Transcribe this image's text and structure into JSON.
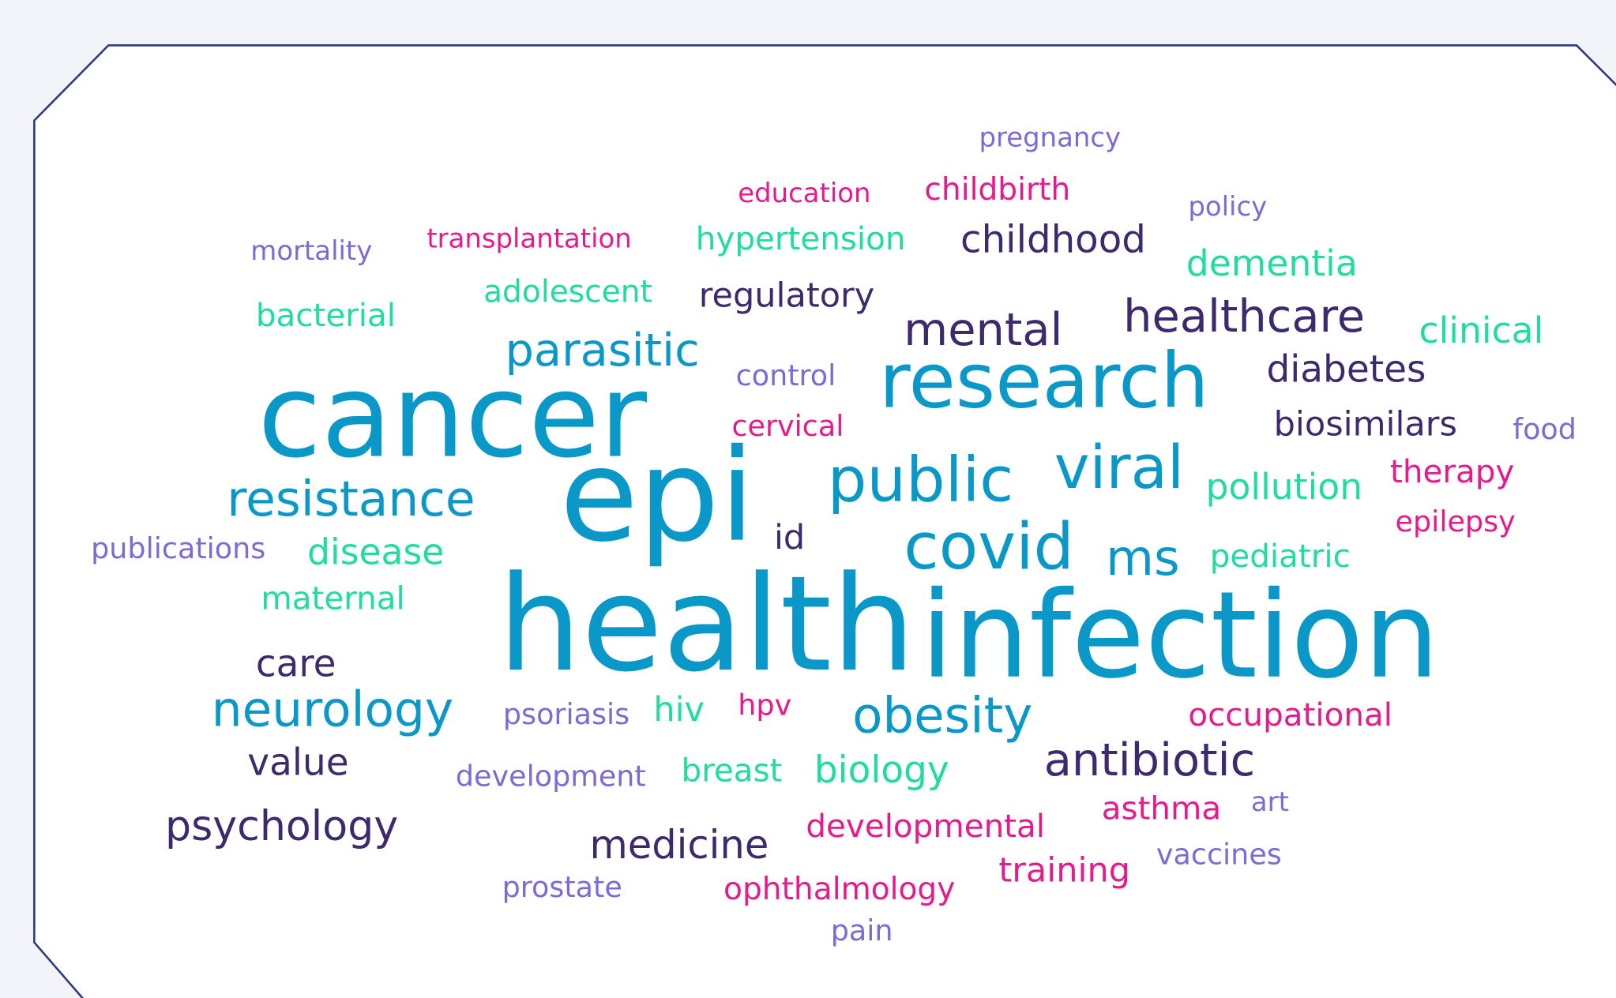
{
  "words": [
    "pregnancy",
    "education",
    "childbirth",
    "policy",
    "mortality",
    "transplantation",
    "hypertension",
    "childhood",
    "dementia",
    "adolescent",
    "regulatory",
    "bacterial",
    "mental",
    "healthcare",
    "clinical",
    "parasitic",
    "control",
    "research",
    "diabetes",
    "cancer",
    "cervical",
    "biosimilars",
    "food",
    "epi",
    "public",
    "viral",
    "therapy",
    "resistance",
    "pollution",
    "epilepsy",
    "publications",
    "disease",
    "id",
    "covid",
    "ms",
    "pediatric",
    "maternal",
    "health",
    "infection",
    "care",
    "neurology",
    "psoriasis",
    "hiv",
    "hpv",
    "obesity",
    "occupational",
    "value",
    "development",
    "breast",
    "biology",
    "antibiotic",
    "art",
    "asthma",
    "psychology",
    "developmental",
    "medicine",
    "vaccines",
    "training",
    "prostate",
    "ophthalmology",
    "pain"
  ]
}
